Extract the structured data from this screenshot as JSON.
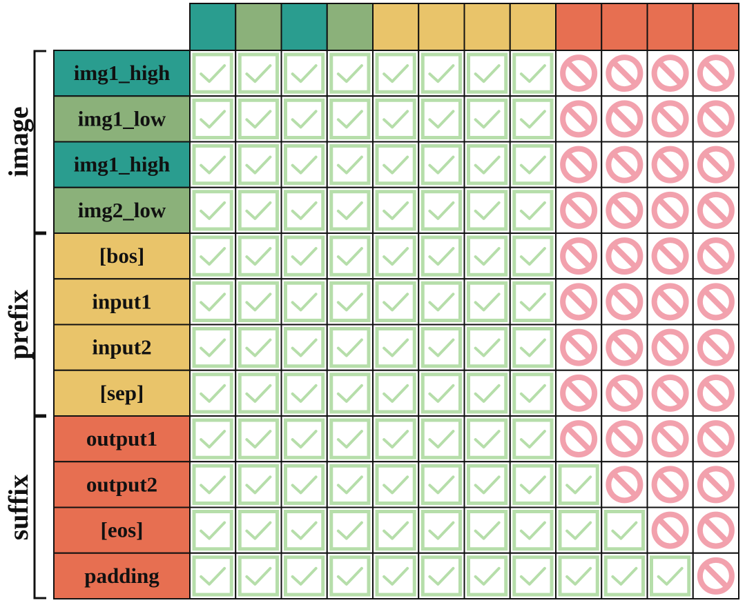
{
  "colors": {
    "teal": "#2a9d8f",
    "sage": "#8bb17a",
    "yellow": "#e9c46a",
    "orange": "#e76f51",
    "check_green": "#b6deaa",
    "block_pink": "#f2a1ad",
    "grid_line": "#111111"
  },
  "column_colors": [
    "teal",
    "sage",
    "teal",
    "sage",
    "yellow",
    "yellow",
    "yellow",
    "yellow",
    "orange",
    "orange",
    "orange",
    "orange"
  ],
  "groups": [
    {
      "label": "image",
      "rows": 4
    },
    {
      "label": "prefix",
      "rows": 4
    },
    {
      "label": "suffix",
      "rows": 4
    }
  ],
  "rows": [
    {
      "label": "img1_high",
      "color": "teal",
      "cells": "cccccccc bbbb"
    },
    {
      "label": "img1_low",
      "color": "sage",
      "cells": "cccccccc bbbb"
    },
    {
      "label": "img1_high",
      "color": "teal",
      "cells": "cccccccc bbbb"
    },
    {
      "label": "img2_low",
      "color": "sage",
      "cells": "cccccccc bbbb"
    },
    {
      "label": "[bos]",
      "color": "yellow",
      "cells": "cccccccc bbbb"
    },
    {
      "label": "input1",
      "color": "yellow",
      "cells": "cccccccc bbbb"
    },
    {
      "label": "input2",
      "color": "yellow",
      "cells": "cccccccc bbbb"
    },
    {
      "label": "[sep]",
      "color": "yellow",
      "cells": "cccccccc bbbb"
    },
    {
      "label": "output1",
      "color": "orange",
      "cells": "cccccccc bbbb"
    },
    {
      "label": "output2",
      "color": "orange",
      "cells": "cccccccc cbbb"
    },
    {
      "label": "[eos]",
      "color": "orange",
      "cells": "cccccccc ccbb"
    },
    {
      "label": "padding",
      "color": "orange",
      "cells": "cccccccc cccb"
    }
  ],
  "icons": {
    "allowed": "check-icon",
    "blocked": "prohibited-icon"
  }
}
